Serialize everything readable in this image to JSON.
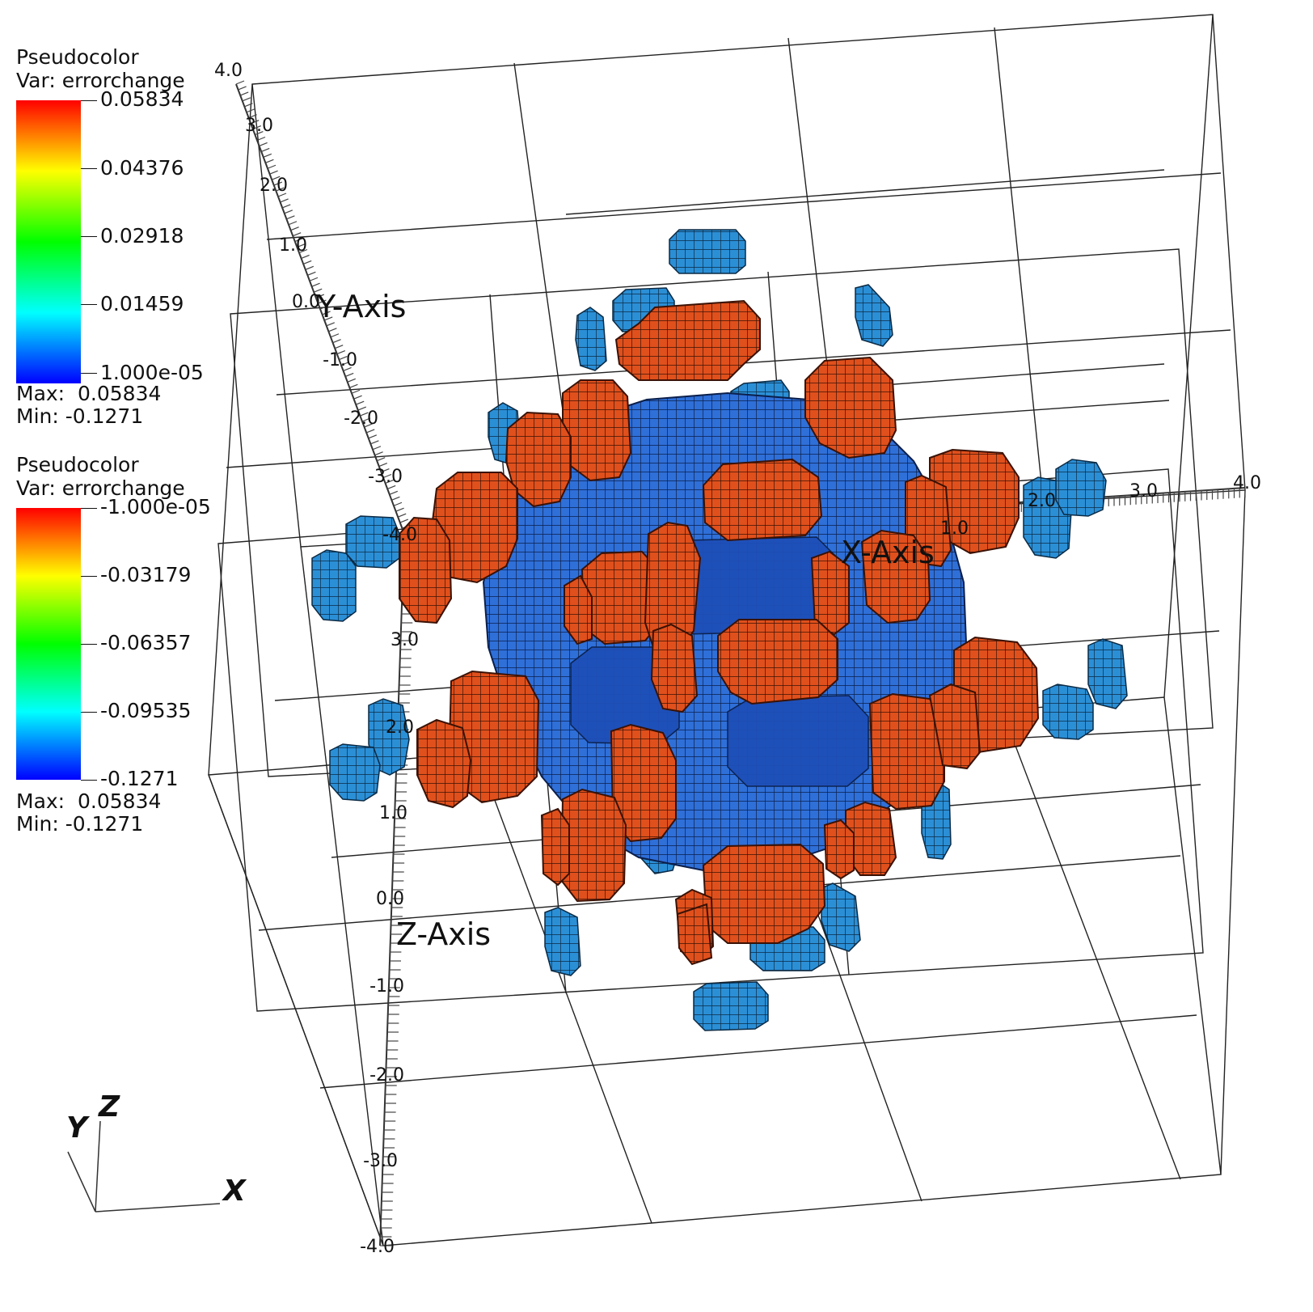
{
  "legends": [
    {
      "title": "Pseudocolor",
      "var": "Var: errorchange",
      "ticks": [
        "0.05834",
        "0.04376",
        "0.02918",
        "0.01459",
        "1.000e-05"
      ],
      "max": "Max:  0.05834",
      "min": "Min: -0.1271"
    },
    {
      "title": "Pseudocolor",
      "var": "Var: errorchange",
      "ticks": [
        "-1.000e-05",
        "-0.03179",
        "-0.06357",
        "-0.09535",
        "-0.1271"
      ],
      "max": "Max:  0.05834",
      "min": "Min: -0.1271"
    }
  ],
  "axes": {
    "x_title": "X-Axis",
    "y_title": "Y-Axis",
    "z_title": "Z-Axis",
    "x_ticks": [
      "1.0",
      "2.0",
      "3.0",
      "4.0"
    ],
    "y_ticks": [
      "4.0",
      "3.0",
      "2.0",
      "1.0",
      "0.0",
      "-1.0",
      "-2.0",
      "-3.0",
      "-4.0"
    ],
    "z_ticks": [
      "3.0",
      "2.0",
      "1.0",
      "0.0",
      "-1.0",
      "-2.0",
      "-3.0",
      "-4.0"
    ]
  },
  "triad": {
    "x": "X",
    "y": "Y",
    "z": "Z"
  },
  "colors": {
    "positive_blob": "#e0501c",
    "negative_blob": "#2f6fd8",
    "small_blob": "#2b8fd6",
    "grid": "#222222"
  }
}
